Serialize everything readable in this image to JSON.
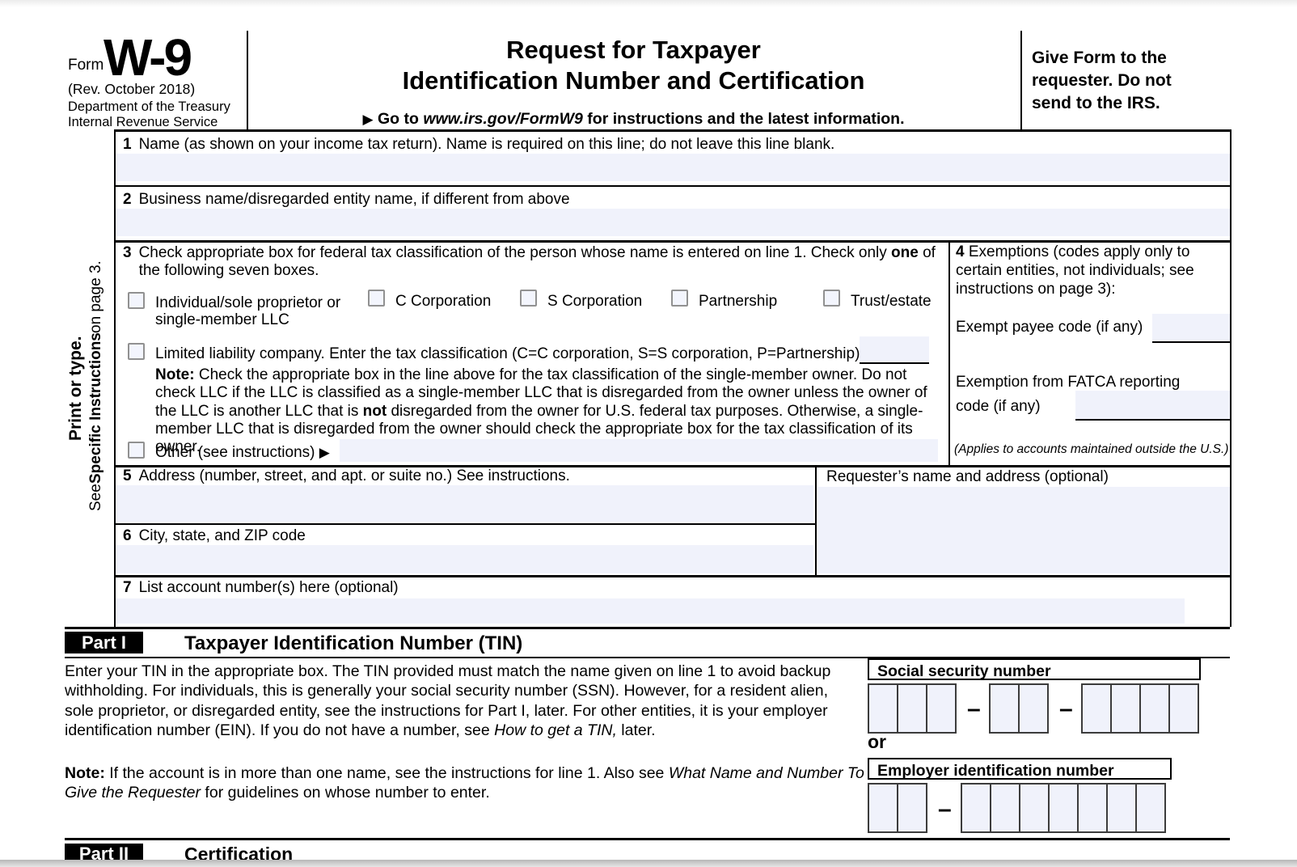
{
  "icons": {
    "arrow_right": "▶"
  },
  "colors": {
    "field_bg": "#f0f2fb",
    "checkbox_bg": "#f3f5fd",
    "bar_black": "#000000"
  },
  "header": {
    "form_label": "Form",
    "form_number": "W-9",
    "revision": "(Rev. October 2018)",
    "department": "Department of the Treasury",
    "agency": "Internal Revenue Service",
    "title_line1": "Request for Taxpayer",
    "title_line2": "Identification Number and Certification",
    "goto_segments": [
      {
        "t": "Go to ",
        "s": "b"
      },
      {
        "t": "www.irs.gov/FormW9",
        "s": "bi"
      },
      {
        "t": " for instructions and the latest information.",
        "s": "b"
      }
    ],
    "give_form": "Give Form to the requester. Do not send to the IRS."
  },
  "sidebar": {
    "print_or_type": "Print or type.",
    "see_instructions_segments": [
      {
        "t": "See "
      },
      {
        "t": "Specific Instructions",
        "s": "b"
      },
      {
        "t": " on page 3."
      }
    ]
  },
  "line1": {
    "num": "1",
    "label": "Name (as shown on your income tax return). Name is required on this line; do not leave this line blank.",
    "value": ""
  },
  "line2": {
    "num": "2",
    "label": "Business name/disregarded entity name, if different from above",
    "value": ""
  },
  "line3": {
    "num": "3",
    "label_segments": [
      {
        "t": "Check appropriate box for federal tax classification of the person whose name is entered on line 1. Check only "
      },
      {
        "t": "one",
        "s": "b"
      },
      {
        "t": " of the following seven boxes."
      }
    ],
    "checkboxes": [
      "Individual/sole proprietor or single-member LLC",
      "C Corporation",
      "S Corporation",
      "Partnership",
      "Trust/estate"
    ],
    "llc_label": "Limited liability company. Enter the tax classification (C=C corporation, S=S corporation, P=Partnership) ",
    "llc_value": "",
    "note_segments": [
      {
        "t": "Note:",
        "s": "b"
      },
      {
        "t": " Check the appropriate box in the line above for the tax classification of the single-member owner.  Do not check LLC if the LLC is classified as a single-member LLC that is disregarded from the owner unless the owner of the LLC is another LLC that is "
      },
      {
        "t": "not",
        "s": "b"
      },
      {
        "t": " disregarded from the owner for U.S. federal tax purposes. Otherwise, a single-member LLC that is disregarded from the owner should check the appropriate box for the tax classification of its owner."
      }
    ],
    "other_label": "Other (see instructions) ",
    "other_value": ""
  },
  "line4": {
    "label_segments": [
      {
        "t": "4",
        "s": "b"
      },
      {
        "t": "  Exemptions (codes apply only to certain entities, not individuals; see instructions on page 3):"
      }
    ],
    "exempt_label": "Exempt payee code (if any)",
    "exempt_value": "",
    "fatca_label": "Exemption from FATCA reporting code (if any)",
    "fatca_value": "",
    "applies_note": "(Applies to accounts maintained outside the U.S.)"
  },
  "line5": {
    "num": "5",
    "label": "Address (number, street, and apt. or suite no.) See instructions.",
    "value": ""
  },
  "requester": {
    "label": "Requester’s name and address (optional)",
    "value": ""
  },
  "line6": {
    "num": "6",
    "label": "City, state, and ZIP code",
    "value": ""
  },
  "line7": {
    "num": "7",
    "label": "List account number(s) here (optional)",
    "value": ""
  },
  "part1": {
    "label": "Part I",
    "title": "Taxpayer Identification Number (TIN)",
    "para_segments": [
      {
        "t": "Enter your TIN in the appropriate box. The TIN provided must match the name given on line 1 to avoid backup withholding. For individuals, this is generally your social security number (SSN). However, for a resident alien, sole proprietor, or disregarded entity, see the instructions for Part I, later. For other entities, it is your employer identification number (EIN). If you do not have a number, see "
      },
      {
        "t": "How to get a TIN,",
        "s": "i"
      },
      {
        "t": " later."
      }
    ],
    "note_segments": [
      {
        "t": "Note:",
        "s": "b"
      },
      {
        "t": " If the account is in more than one name, see the instructions for line 1. Also see "
      },
      {
        "t": "What Name and Number To Give the Requester",
        "s": "i"
      },
      {
        "t": " for guidelines on whose number to enter."
      }
    ],
    "ssn_label": "Social security number",
    "or_label": "or",
    "ein_label": "Employer identification number",
    "dash": "–",
    "ssn_group_cells": [
      3,
      2,
      4
    ],
    "ein_group_cells": [
      2,
      7
    ]
  },
  "part2": {
    "label": "Part II",
    "title": "Certification"
  }
}
